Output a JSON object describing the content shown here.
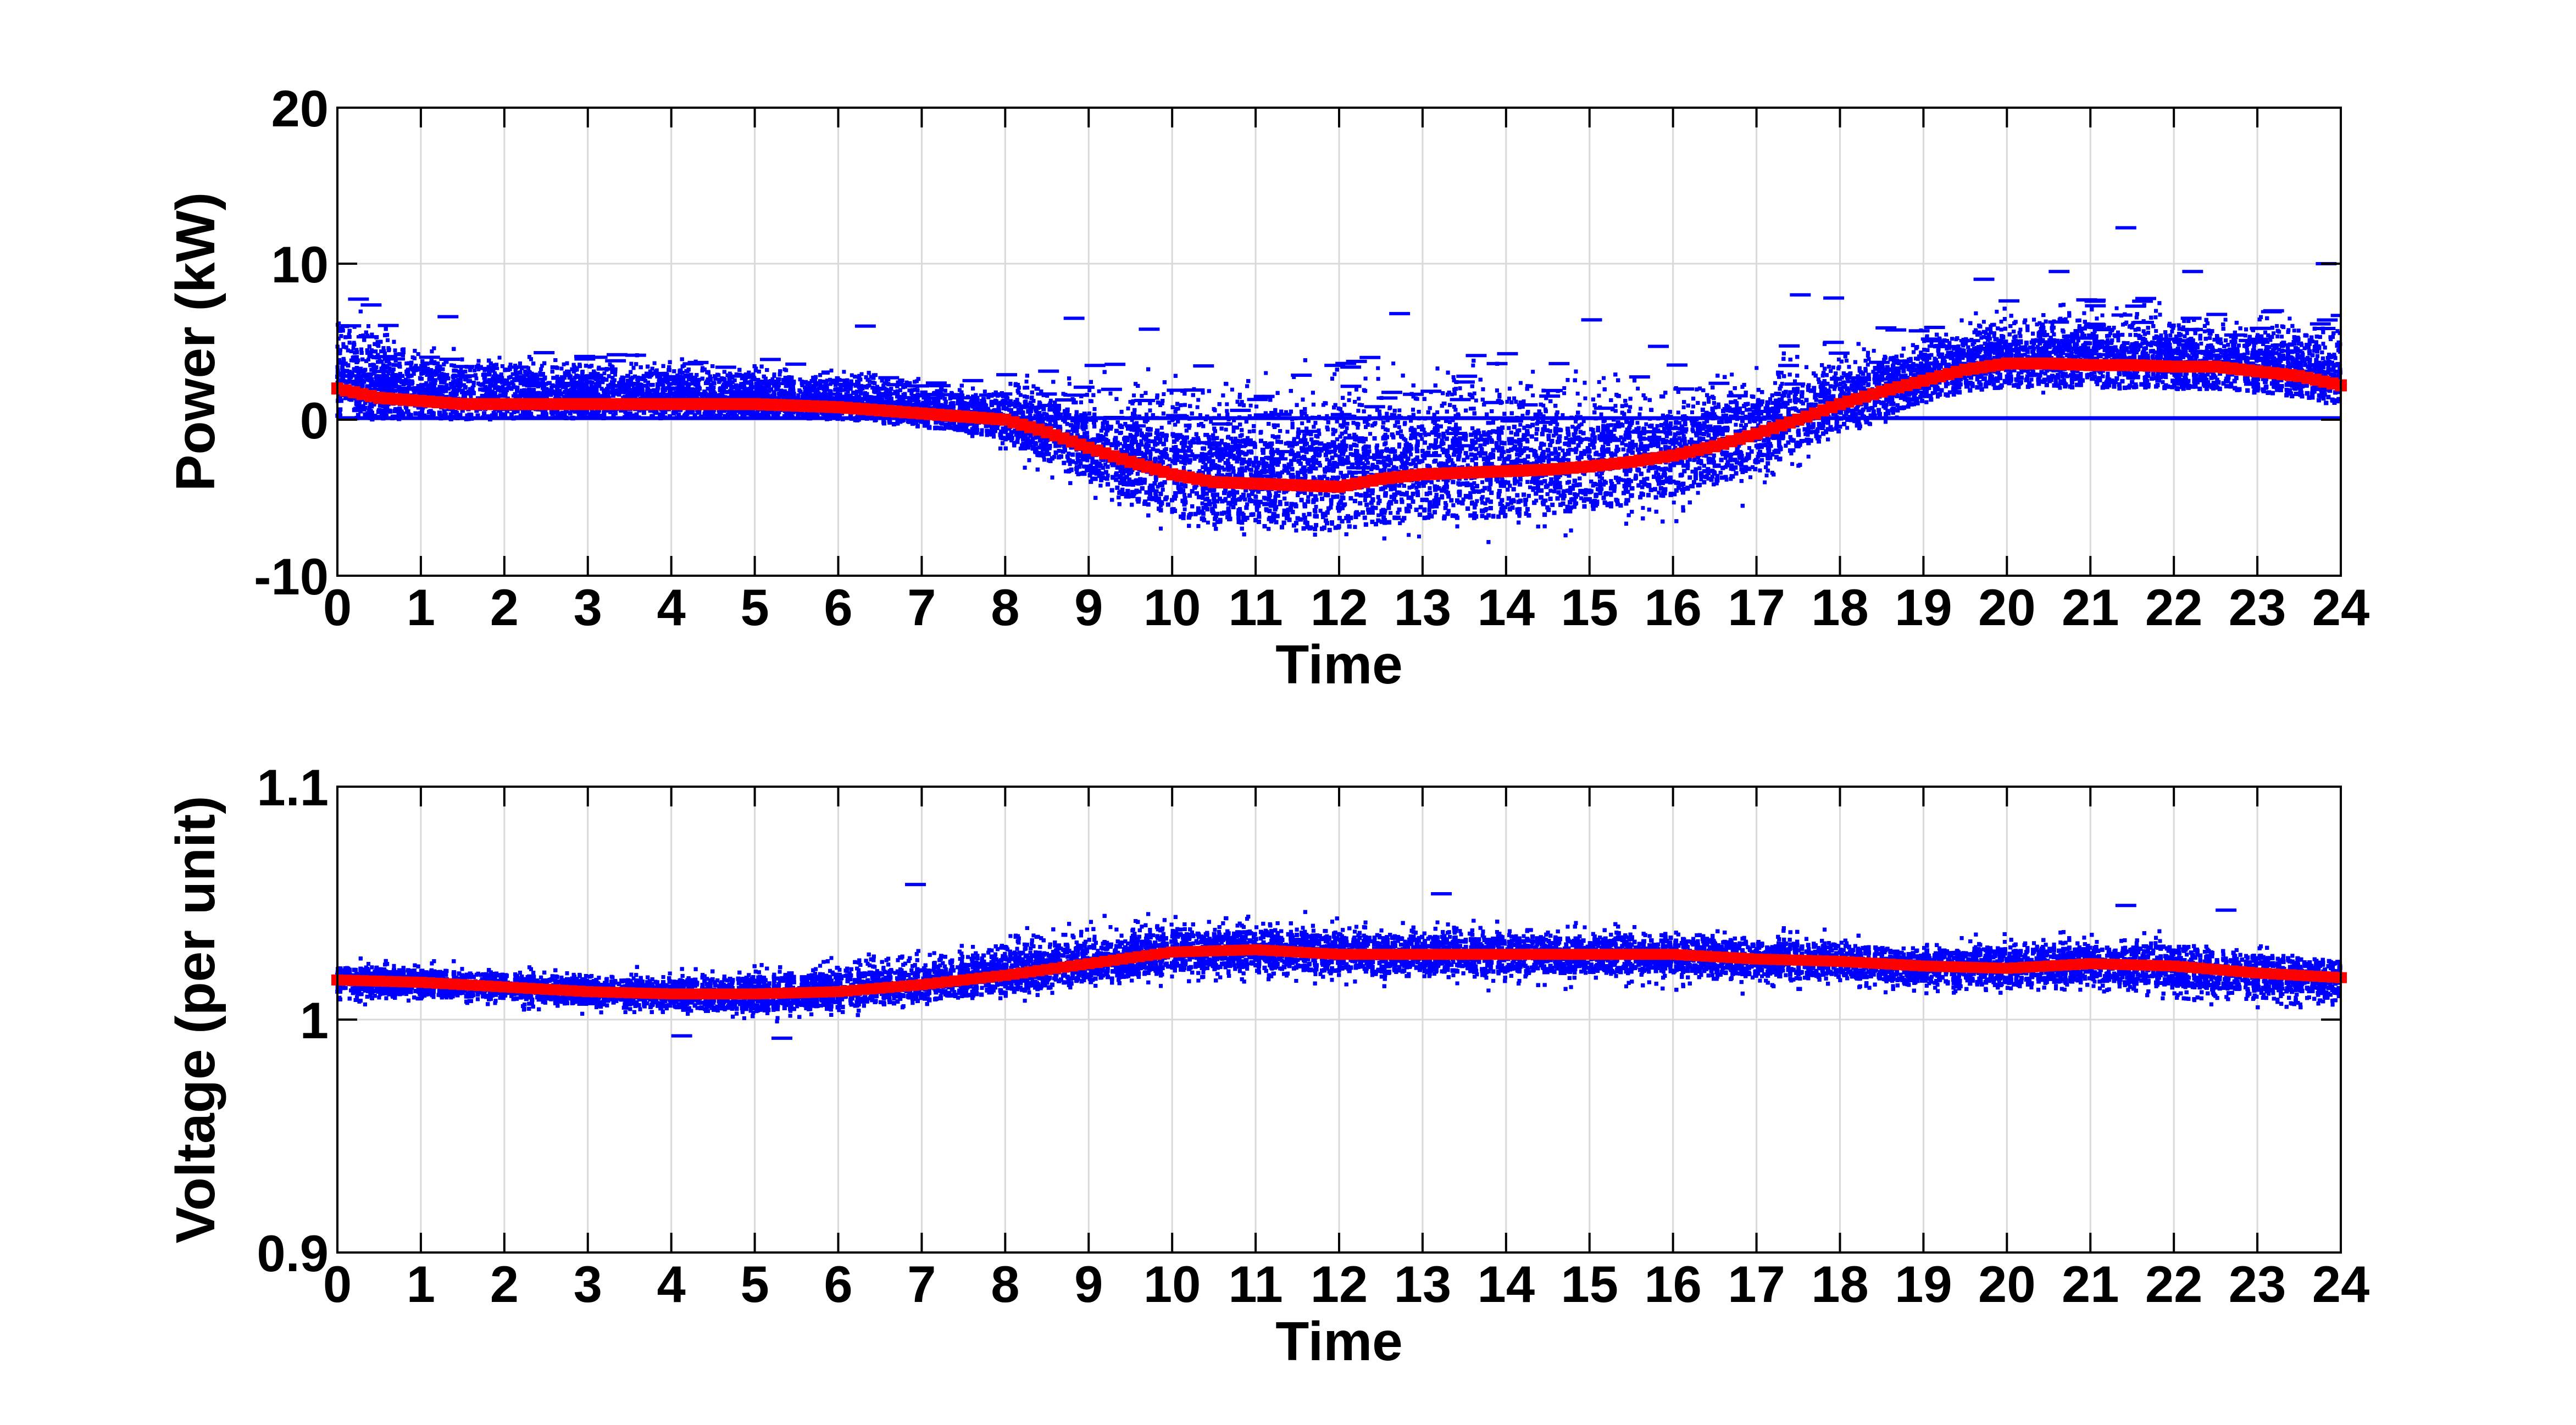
{
  "chart_data": [
    {
      "type": "scatter",
      "title": "",
      "xlabel": "Time",
      "ylabel": "Power (kW)",
      "xlim": [
        0,
        24
      ],
      "ylim": [
        -10,
        20
      ],
      "xticks": [
        "0",
        "1",
        "2",
        "3",
        "4",
        "5",
        "6",
        "7",
        "8",
        "9",
        "10",
        "11",
        "12",
        "13",
        "14",
        "15",
        "16",
        "17",
        "18",
        "19",
        "20",
        "21",
        "22",
        "23",
        "24"
      ],
      "yticks": [
        "-10",
        "0",
        "10",
        "20"
      ],
      "grid": true,
      "colors": {
        "samples": "#0000ff",
        "mean": "#ff0000"
      },
      "series": [
        {
          "x": [
            0,
            0.5,
            1,
            1.5,
            2,
            2.5,
            3,
            3.5,
            4,
            4.5,
            5,
            5.5,
            6,
            6.5,
            7,
            7.5,
            8,
            8.5,
            9,
            9.5,
            10,
            10.5,
            11,
            11.5,
            12,
            12.5,
            13,
            13.5,
            14,
            14.5,
            15,
            15.5,
            16,
            16.5,
            17,
            17.5,
            18,
            18.5,
            19,
            19.5,
            20,
            20.5,
            21,
            21.5,
            22,
            22.5,
            23,
            23.5,
            24
          ],
          "mean": [
            2.0,
            1.4,
            1.2,
            1.0,
            1.0,
            1.0,
            1.0,
            1.0,
            1.0,
            1.0,
            1.0,
            0.9,
            0.8,
            0.6,
            0.4,
            0.2,
            0.0,
            -0.8,
            -1.8,
            -2.7,
            -3.5,
            -4.0,
            -4.1,
            -4.2,
            -4.3,
            -3.8,
            -3.5,
            -3.4,
            -3.3,
            -3.2,
            -3.0,
            -2.7,
            -2.3,
            -1.7,
            -0.9,
            0.0,
            1.0,
            1.8,
            2.5,
            3.2,
            3.6,
            3.6,
            3.5,
            3.5,
            3.4,
            3.4,
            3.1,
            2.8,
            2.2
          ],
          "upper": [
            8.3,
            6.7,
            5.0,
            4.7,
            4.5,
            4.3,
            4.2,
            4.2,
            4.2,
            4.0,
            3.9,
            3.6,
            3.5,
            3.3,
            3.0,
            2.8,
            3.0,
            3.5,
            3.5,
            3.7,
            4.2,
            3.9,
            3.8,
            4.0,
            4.2,
            4.3,
            4.8,
            5.0,
            4.7,
            4.6,
            4.3,
            4.2,
            4.3,
            4.5,
            4.6,
            5.0,
            5.5,
            6.0,
            6.5,
            7.2,
            7.8,
            8.0,
            8.0,
            8.0,
            7.8,
            7.5,
            7.2,
            7.0,
            6.8
          ],
          "lower": [
            0.2,
            0.2,
            0.2,
            0.2,
            0.2,
            0.2,
            0.2,
            0.2,
            0.2,
            0.2,
            0.2,
            0.1,
            0.0,
            -0.3,
            -0.8,
            -1.5,
            -2.5,
            -4.2,
            -6.0,
            -7.0,
            -7.8,
            -8.3,
            -8.6,
            -8.6,
            -8.5,
            -8.5,
            -8.4,
            -8.4,
            -8.3,
            -8.3,
            -8.1,
            -7.8,
            -7.2,
            -6.5,
            -5.5,
            -4.0,
            -2.5,
            -1.0,
            0.4,
            1.0,
            1.2,
            1.3,
            1.3,
            1.3,
            1.3,
            1.2,
            1.1,
            1.0,
            0.8
          ],
          "outliers": [
            [
              1.2,
              6.6
            ],
            [
              6.2,
              6.0
            ],
            [
              8.7,
              6.5
            ],
            [
              9.6,
              5.8
            ],
            [
              12.6,
              6.8
            ],
            [
              14.9,
              6.4
            ],
            [
              15.7,
              4.7
            ],
            [
              17.4,
              8.0
            ],
            [
              17.8,
              7.8
            ],
            [
              19.6,
              9.0
            ],
            [
              20.5,
              9.5
            ],
            [
              21.3,
              12.3
            ],
            [
              22.1,
              9.5
            ],
            [
              23.7,
              10.0
            ]
          ]
        }
      ]
    },
    {
      "type": "scatter",
      "title": "",
      "xlabel": "Time",
      "ylabel": "Voltage (per unit)",
      "xlim": [
        0,
        24
      ],
      "ylim": [
        0.9,
        1.1
      ],
      "xticks": [
        "0",
        "1",
        "2",
        "3",
        "4",
        "5",
        "6",
        "7",
        "8",
        "9",
        "10",
        "11",
        "12",
        "13",
        "14",
        "15",
        "16",
        "17",
        "18",
        "19",
        "20",
        "21",
        "22",
        "23",
        "24"
      ],
      "yticks": [
        "0.9",
        "1",
        "1.1"
      ],
      "grid": true,
      "colors": {
        "samples": "#0000ff",
        "mean": "#ff0000"
      },
      "series": [
        {
          "x": [
            0,
            1,
            2,
            3,
            4,
            5,
            6,
            7,
            8,
            9,
            10,
            11,
            12,
            13,
            14,
            15,
            16,
            17,
            18,
            19,
            20,
            21,
            22,
            23,
            24
          ],
          "mean": [
            1.017,
            1.016,
            1.014,
            1.012,
            1.011,
            1.011,
            1.012,
            1.015,
            1.019,
            1.024,
            1.029,
            1.03,
            1.028,
            1.028,
            1.028,
            1.028,
            1.028,
            1.026,
            1.025,
            1.023,
            1.022,
            1.024,
            1.023,
            1.02,
            1.018
          ],
          "upper": [
            1.028,
            1.027,
            1.025,
            1.023,
            1.023,
            1.027,
            1.03,
            1.033,
            1.04,
            1.046,
            1.048,
            1.048,
            1.046,
            1.046,
            1.045,
            1.045,
            1.044,
            1.042,
            1.04,
            1.038,
            1.04,
            1.041,
            1.04,
            1.035,
            1.03
          ],
          "lower": [
            1.005,
            1.004,
            1.002,
            1.0,
            0.998,
            0.995,
            0.998,
            1.002,
            1.006,
            1.01,
            1.013,
            1.013,
            1.012,
            1.012,
            1.011,
            1.011,
            1.011,
            1.01,
            1.009,
            1.008,
            1.007,
            1.008,
            1.002,
            1.001,
            1.0
          ],
          "outliers": [
            [
              6.8,
              1.058
            ],
            [
              13.1,
              1.054
            ],
            [
              21.3,
              1.049
            ],
            [
              22.5,
              1.047
            ],
            [
              4.0,
              0.993
            ],
            [
              5.2,
              0.992
            ]
          ]
        }
      ]
    }
  ]
}
